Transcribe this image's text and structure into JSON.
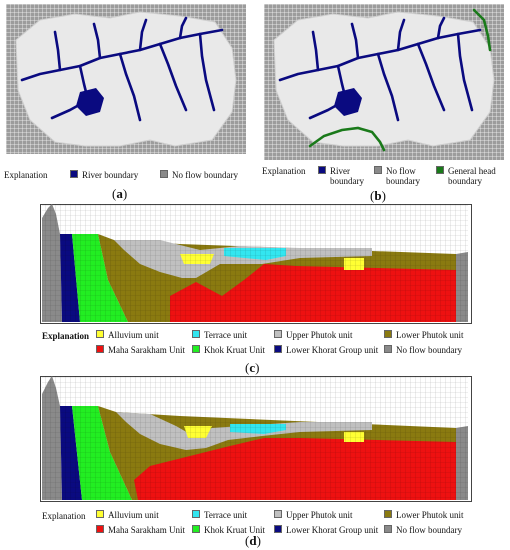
{
  "panels": {
    "a": {
      "caption_open": "(",
      "caption_letter": "a",
      "caption_close": ")",
      "explanation": "Explanation",
      "legend": [
        {
          "label": "River boundary",
          "color": "#0a0a80"
        },
        {
          "label": "No flow boundary",
          "color": "#8a8a8a"
        }
      ]
    },
    "b": {
      "caption_open": "(",
      "caption_letter": "b",
      "caption_close": ")",
      "explanation": "Explanation",
      "legend": [
        {
          "label_l1": "River",
          "label_l2": "boundary",
          "color": "#0a0a80"
        },
        {
          "label_l1": "No flow",
          "label_l2": "boundary",
          "color": "#8a8a8a"
        },
        {
          "label_l1": "General head",
          "label_l2": "boundary",
          "color": "#1a7a1a"
        }
      ]
    },
    "c": {
      "caption_open": "(",
      "caption_letter": "c",
      "caption_close": ")",
      "explanation": "Explanation"
    },
    "d": {
      "caption_open": "(",
      "caption_letter": "d",
      "caption_close": ")",
      "explanation": "Explanation"
    }
  },
  "units": [
    {
      "label": "Alluvium unit",
      "color": "#ffff33"
    },
    {
      "label": "Terrace unit",
      "color": "#33e6f0"
    },
    {
      "label": "Upper Phutok unit",
      "color": "#c0c0c0"
    },
    {
      "label": "Lower Phutok  unit",
      "color": "#8a7a10"
    },
    {
      "label": "Maha Sarakham Unit",
      "color": "#ee1111"
    },
    {
      "label": "Khok Kruat Unit",
      "color": "#22ee22"
    },
    {
      "label": "Lower Khorat Group unit",
      "color": "#0a0a80"
    },
    {
      "label": "No flow boundary",
      "color": "#8a8a8a"
    }
  ]
}
